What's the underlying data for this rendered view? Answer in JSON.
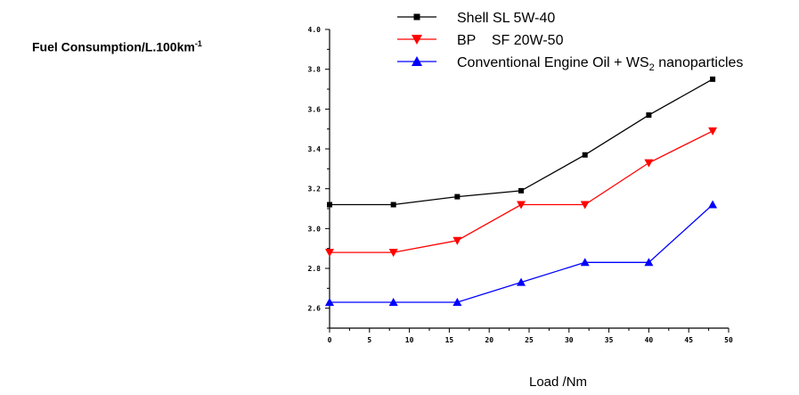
{
  "chart_data": {
    "type": "line",
    "ylabel": "Fuel Consumption/L.100km",
    "ylabel_sup": "-1",
    "xlabel": "Load /Nm",
    "xlim": [
      0,
      50
    ],
    "ylim": [
      2.5,
      4.0
    ],
    "x_ticks": [
      0,
      5,
      10,
      15,
      20,
      25,
      30,
      35,
      40,
      45,
      50
    ],
    "x_tick_labels": [
      "0",
      "5",
      "10",
      "15",
      "20",
      "25",
      "30",
      "35",
      "40",
      "45",
      "50"
    ],
    "y_ticks": [
      2.6,
      2.8,
      3.0,
      3.2,
      3.4,
      3.6,
      3.8,
      4.0
    ],
    "y_tick_labels": [
      "2.6",
      "2.8",
      "3.0",
      "3.2",
      "3.4",
      "3.6",
      "3.8",
      "4.0"
    ],
    "x": [
      0,
      8,
      16,
      24,
      32,
      40,
      48
    ],
    "legend_position": "top-right",
    "series": [
      {
        "name": "Shell SL 5W-40",
        "name_parts": [
          "Shell SL 5W-40"
        ],
        "marker": "square",
        "color": "#000000",
        "values": [
          3.12,
          3.12,
          3.16,
          3.19,
          3.37,
          3.57,
          3.75
        ]
      },
      {
        "name": "BP    SF 20W-50",
        "name_parts": [
          "BP    SF 20W-50"
        ],
        "marker": "triangle-down",
        "color": "#ff0000",
        "values": [
          2.88,
          2.88,
          2.94,
          3.12,
          3.12,
          3.33,
          3.49
        ]
      },
      {
        "name": "Conventional Engine Oil + WS2 nanoparticles",
        "name_parts": [
          "Conventional Engine Oil + WS",
          "2",
          " nanoparticles"
        ],
        "marker": "triangle-up",
        "color": "#0000ff",
        "values": [
          2.63,
          2.63,
          2.63,
          2.73,
          2.83,
          2.83,
          3.12
        ]
      }
    ]
  }
}
